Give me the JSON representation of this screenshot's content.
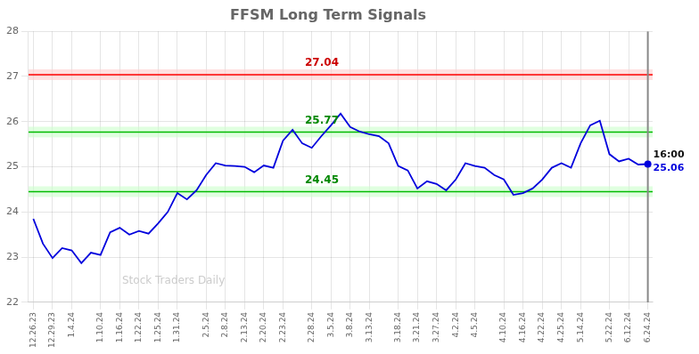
{
  "chart_data": {
    "type": "line",
    "title": "FFSM Long Term Signals",
    "categories": [
      "12.26.23",
      null,
      "12.29.23",
      null,
      "1.4.24",
      null,
      null,
      "1.10.24",
      null,
      "1.16.24",
      null,
      "1.22.24",
      null,
      "1.25.24",
      null,
      "1.31.24",
      null,
      null,
      "2.5.24",
      null,
      "2.8.24",
      null,
      "2.13.24",
      null,
      "2.20.24",
      null,
      "2.23.24",
      null,
      null,
      "2.28.24",
      null,
      "3.5.24",
      null,
      "3.8.24",
      null,
      "3.13.24",
      null,
      null,
      "3.18.24",
      null,
      "3.21.24",
      null,
      "3.27.24",
      null,
      "4.2.24",
      null,
      "4.5.24",
      null,
      null,
      "4.10.24",
      null,
      "4.16.24",
      null,
      "4.22.24",
      null,
      "4.25.24",
      null,
      "5.14.24",
      null,
      null,
      "5.22.24",
      null,
      "6.12.24",
      null,
      "6.24.24"
    ],
    "values": [
      23.85,
      23.3,
      22.98,
      23.2,
      23.15,
      22.87,
      23.1,
      23.05,
      23.55,
      23.65,
      23.5,
      23.58,
      23.52,
      23.75,
      24.0,
      24.42,
      24.28,
      24.48,
      24.82,
      25.08,
      25.03,
      25.02,
      25.0,
      24.88,
      25.03,
      24.98,
      25.58,
      25.82,
      25.52,
      25.42,
      25.68,
      25.92,
      26.18,
      25.88,
      25.78,
      25.72,
      25.68,
      25.52,
      25.02,
      24.92,
      24.52,
      24.68,
      24.62,
      24.48,
      24.72,
      25.08,
      25.02,
      24.98,
      24.82,
      24.72,
      24.38,
      24.42,
      24.52,
      24.72,
      24.98,
      25.08,
      24.98,
      25.52,
      25.92,
      26.02,
      25.28,
      25.12,
      25.18,
      25.05,
      25.06
    ],
    "color": "#0000dd",
    "ylim": [
      22,
      28
    ],
    "yticks": [
      22,
      23,
      24,
      25,
      26,
      27,
      28
    ],
    "grid": true,
    "annotations": [
      {
        "type": "hline",
        "y": 27.04,
        "label": "27.04",
        "color": "#ff0000",
        "band_color": "#ffcccc",
        "label_color": "#cc0000"
      },
      {
        "type": "hline",
        "y": 25.77,
        "label": "25.77",
        "color": "#00bb00",
        "band_color": "#ccffcc",
        "label_color": "#008800"
      },
      {
        "type": "hline",
        "y": 24.45,
        "label": "24.45",
        "color": "#00bb00",
        "band_color": "#ccffcc",
        "label_color": "#008800"
      },
      {
        "type": "vline",
        "at": "6.24.24",
        "color": "#888888"
      },
      {
        "type": "last_point",
        "at": "6.24.24",
        "y": 25.06,
        "label": "25.06",
        "text": "16:00",
        "marker": "circle",
        "color": "#0000dd",
        "text_color": "#111111"
      },
      {
        "type": "watermark",
        "text": "Stock Traders Daily",
        "color": "#cccccc"
      }
    ]
  }
}
